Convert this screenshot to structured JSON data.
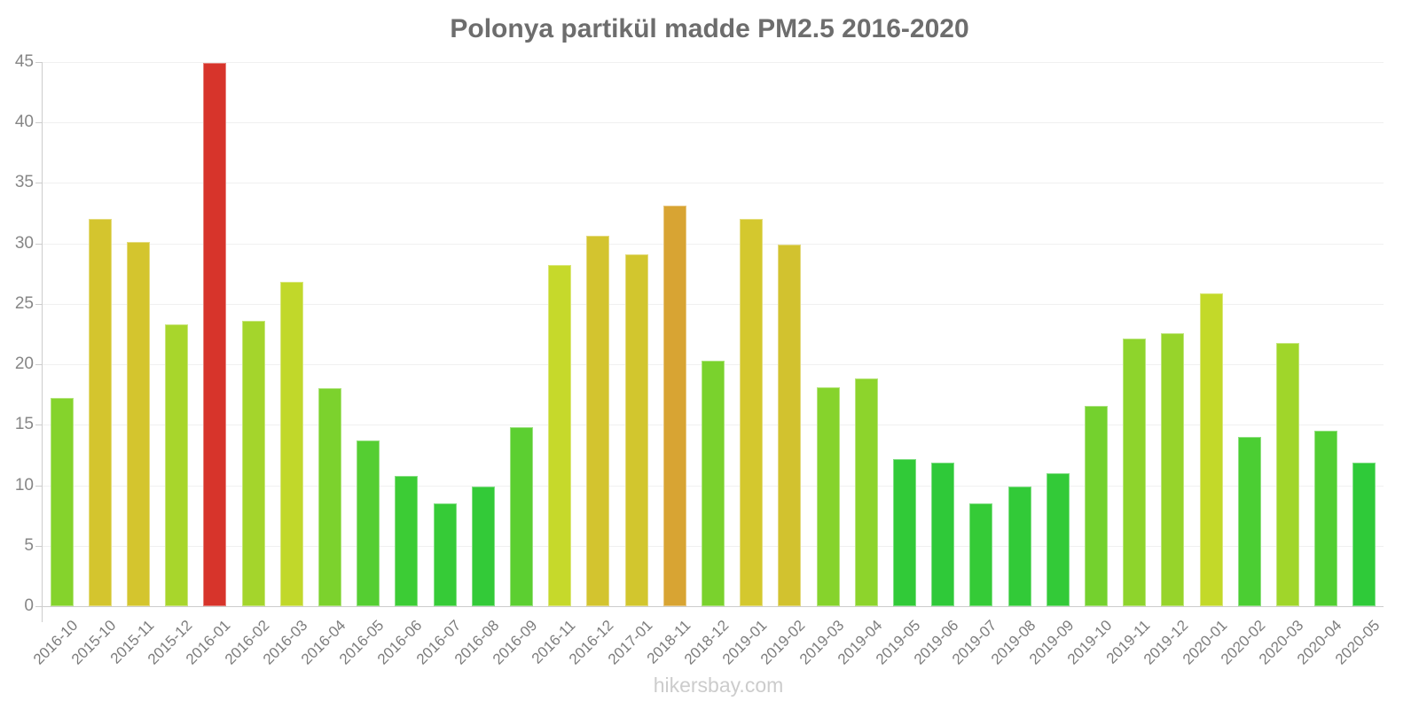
{
  "title": "Polonya partikül madde PM2.5 2016-2020",
  "watermark": "hikersbay.com",
  "chart_data": {
    "type": "bar",
    "title": "Polonya partikül madde PM2.5 2016-2020",
    "xlabel": "",
    "ylabel": "",
    "ylim": [
      0,
      45
    ],
    "yticks": [
      0,
      5,
      10,
      15,
      20,
      25,
      30,
      35,
      40,
      45
    ],
    "grid": true,
    "legend": null,
    "categories": [
      "2016-10",
      "2015-10",
      "2015-11",
      "2015-12",
      "2016-01",
      "2016-02",
      "2016-03",
      "2016-04",
      "2016-05",
      "2016-06",
      "2016-07",
      "2016-08",
      "2016-09",
      "2016-11",
      "2016-12",
      "2017-01",
      "2018-11",
      "2018-12",
      "2019-01",
      "2019-02",
      "2019-03",
      "2019-04",
      "2019-05",
      "2019-06",
      "2019-07",
      "2019-08",
      "2019-09",
      "2019-10",
      "2019-11",
      "2019-12",
      "2020-01",
      "2020-02",
      "2020-03",
      "2020-04",
      "2020-05"
    ],
    "values": [
      17.2,
      32.0,
      30.1,
      23.3,
      44.9,
      23.6,
      26.8,
      18.0,
      13.7,
      10.8,
      8.5,
      9.9,
      14.8,
      28.2,
      30.6,
      29.1,
      33.1,
      20.3,
      32.0,
      29.9,
      18.1,
      18.8,
      12.2,
      11.9,
      8.5,
      9.9,
      11.0,
      16.6,
      22.1,
      22.6,
      25.9,
      14.0,
      21.8,
      14.5,
      11.9
    ],
    "bar_colors": [
      "#85d32c",
      "#d4c52e",
      "#d4c52e",
      "#a8d62c",
      "#d7342b",
      "#a4d52c",
      "#c1d82a",
      "#7cd22d",
      "#55ce32",
      "#3ccc35",
      "#36cb37",
      "#33ca38",
      "#5ccf31",
      "#c6d92b",
      "#d3c42f",
      "#d2c62e",
      "#d8a433",
      "#7ad22d",
      "#d4c82e",
      "#d2c22f",
      "#86d32c",
      "#8dd42c",
      "#31ca38",
      "#2fc939",
      "#35cb37",
      "#32ca38",
      "#33ca38",
      "#74d12e",
      "#8ed42c",
      "#97d42b",
      "#c3d929",
      "#4bce33",
      "#a0d62a",
      "#52ce32",
      "#2fca39"
    ],
    "highlight_color": "#d7342b",
    "axis_color": "#cccccc",
    "gridline_color": "#f0f0f0",
    "tick_label_color": "#868686",
    "title_color": "#6d6d6d",
    "watermark_color": "#cccccc"
  }
}
